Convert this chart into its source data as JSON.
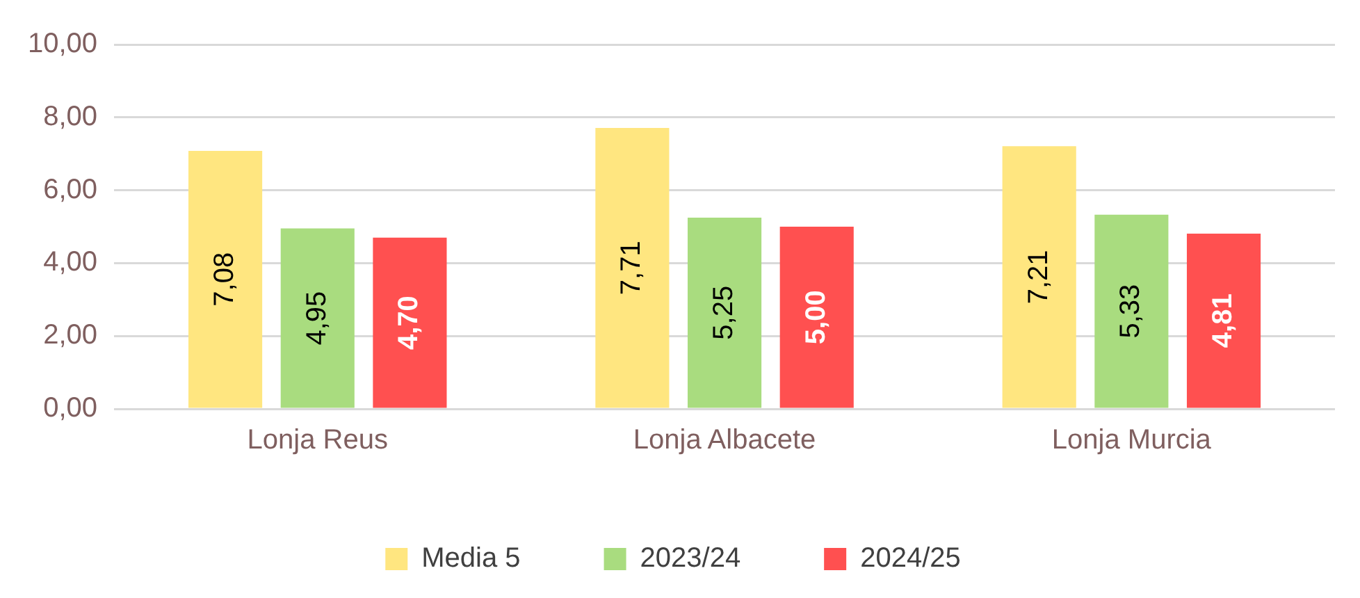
{
  "chart_data": {
    "type": "bar",
    "categories": [
      "Lonja Reus",
      "Lonja Albacete",
      "Lonja Murcia"
    ],
    "series": [
      {
        "name": "Media 5",
        "color": "#ffe680",
        "values": [
          7.08,
          7.71,
          7.21
        ],
        "value_labels": [
          "7,08",
          "7,71",
          "7,21"
        ]
      },
      {
        "name": "2023/24",
        "color": "#a9dc7f",
        "values": [
          4.95,
          5.25,
          5.33
        ],
        "value_labels": [
          "4,95",
          "5,25",
          "5,33"
        ]
      },
      {
        "name": "2024/25",
        "color": "#ff5050",
        "values": [
          4.7,
          5.0,
          4.81
        ],
        "value_labels": [
          "4,70",
          "5,00",
          "4,81"
        ]
      }
    ],
    "ylim": [
      0,
      10
    ],
    "yticks": [
      {
        "value": 0,
        "label": "0,00"
      },
      {
        "value": 2,
        "label": "2,00"
      },
      {
        "value": 4,
        "label": "4,00"
      },
      {
        "value": 6,
        "label": "6,00"
      },
      {
        "value": 8,
        "label": "8,00"
      },
      {
        "value": 10,
        "label": "10,00"
      }
    ],
    "grid": "y",
    "legend": "bottom"
  }
}
